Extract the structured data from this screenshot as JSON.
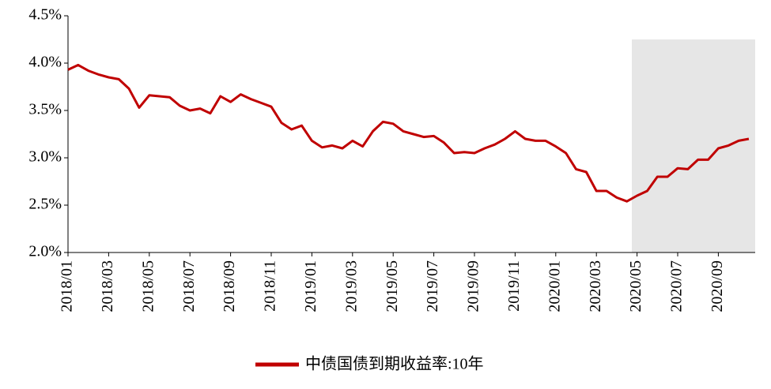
{
  "chart_data": {
    "type": "line",
    "categories": [
      "2018/01",
      null,
      null,
      null,
      "2018/03",
      null,
      null,
      null,
      "2018/05",
      null,
      null,
      null,
      "2018/07",
      null,
      null,
      null,
      "2018/09",
      null,
      null,
      null,
      "2018/11",
      null,
      null,
      null,
      "2019/01",
      null,
      null,
      null,
      "2019/03",
      null,
      null,
      null,
      "2019/05",
      null,
      null,
      null,
      "2019/07",
      null,
      null,
      null,
      "2019/09",
      null,
      null,
      null,
      "2019/11",
      null,
      null,
      null,
      "2020/01",
      null,
      null,
      null,
      "2020/03",
      null,
      null,
      null,
      "2020/05",
      null,
      null,
      null,
      "2020/07",
      null,
      null,
      null,
      "2020/09",
      null,
      null,
      null
    ],
    "series": [
      {
        "name": "中债国债到期收益率:10年",
        "color": "#c00000",
        "values": [
          3.93,
          3.98,
          3.92,
          3.88,
          3.85,
          3.83,
          3.73,
          3.53,
          3.66,
          3.65,
          3.64,
          3.55,
          3.5,
          3.52,
          3.47,
          3.65,
          3.59,
          3.67,
          3.62,
          3.58,
          3.54,
          3.37,
          3.3,
          3.34,
          3.18,
          3.11,
          3.13,
          3.1,
          3.18,
          3.12,
          3.28,
          3.38,
          3.36,
          3.28,
          3.25,
          3.22,
          3.23,
          3.16,
          3.05,
          3.06,
          3.05,
          3.1,
          3.14,
          3.2,
          3.28,
          3.2,
          3.18,
          3.18,
          3.12,
          3.05,
          2.88,
          2.85,
          2.65,
          2.65,
          2.58,
          2.54,
          2.6,
          2.65,
          2.8,
          2.8,
          2.89,
          2.88,
          2.98,
          2.98,
          3.1,
          3.13,
          3.18,
          3.2
        ]
      }
    ],
    "ylim": [
      2.0,
      4.5
    ],
    "yticks": [
      {
        "value": 2.0,
        "label": "2.0%"
      },
      {
        "value": 2.5,
        "label": "2.5%"
      },
      {
        "value": 3.0,
        "label": "3.0%"
      },
      {
        "value": 3.5,
        "label": "3.5%"
      },
      {
        "value": 4.0,
        "label": "4.0%"
      },
      {
        "value": 4.5,
        "label": "4.5%"
      }
    ],
    "legend": "bottom"
  }
}
